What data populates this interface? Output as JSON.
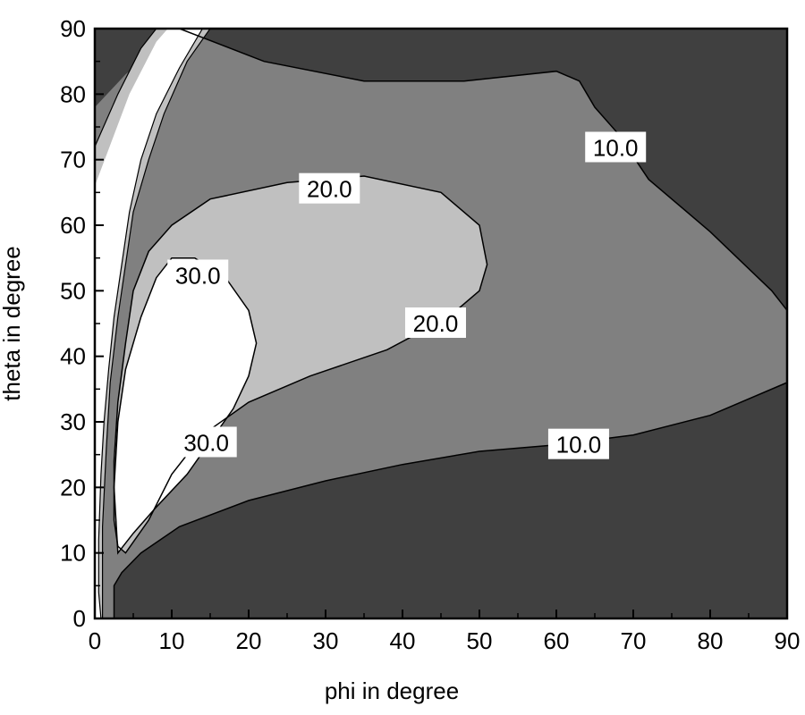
{
  "chart_data": {
    "type": "contour",
    "xlabel": "phi in degree",
    "ylabel": "theta in degree",
    "xlim": [
      0,
      90
    ],
    "ylim": [
      0,
      90
    ],
    "x_ticks": [
      0,
      10,
      20,
      30,
      40,
      50,
      60,
      70,
      80,
      90
    ],
    "y_ticks": [
      0,
      10,
      20,
      30,
      40,
      50,
      60,
      70,
      80,
      90
    ],
    "levels": [
      10.0,
      20.0,
      30.0
    ],
    "fills": {
      "below_10": "#404040",
      "10_to_20": "#808080",
      "20_to_30": "#c0c0c0",
      "above_30": "#ffffff"
    },
    "contour_labels": [
      {
        "text": "10.0",
        "phi": 67.7,
        "theta": 71.8
      },
      {
        "text": "10.0",
        "phi": 62.9,
        "theta": 26.5
      },
      {
        "text": "20.0",
        "phi": 30.5,
        "theta": 65.5
      },
      {
        "text": "20.0",
        "phi": 44.3,
        "theta": 45.0
      },
      {
        "text": "30.0",
        "phi": 13.4,
        "theta": 52.3
      },
      {
        "text": "30.0",
        "phi": 14.5,
        "theta": 26.8
      }
    ],
    "contours": {
      "outer_10": [
        [
          0,
          0
        ],
        [
          0,
          95
        ],
        [
          11,
          95
        ],
        [
          28,
          95
        ],
        [
          42,
          95
        ],
        [
          42,
          91
        ],
        [
          30,
          89
        ],
        [
          23,
          84
        ],
        [
          18,
          74
        ],
        [
          14,
          66
        ],
        [
          12,
          58
        ],
        [
          8,
          50
        ],
        [
          5,
          42
        ],
        [
          3,
          34
        ],
        [
          2,
          26
        ],
        [
          2,
          18
        ],
        [
          2,
          10
        ],
        [
          2,
          5
        ],
        [
          2.5,
          4
        ],
        [
          2.5,
          0
        ]
      ],
      "band_10_20": [
        [
          0,
          0
        ],
        [
          0,
          95
        ],
        [
          11,
          95
        ],
        [
          28,
          95
        ],
        [
          42,
          95
        ],
        [
          42,
          91
        ],
        [
          50,
          89
        ],
        [
          60,
          87
        ],
        [
          70,
          85
        ],
        [
          78,
          84
        ],
        [
          85,
          82
        ],
        [
          90,
          80
        ],
        [
          90,
          50
        ],
        [
          80,
          51
        ],
        [
          70,
          53
        ],
        [
          66,
          54
        ],
        [
          63,
          57
        ],
        [
          60,
          58
        ],
        [
          55,
          59
        ],
        [
          50,
          61
        ],
        [
          45,
          63
        ],
        [
          40,
          65
        ],
        [
          35,
          66
        ],
        [
          30,
          67
        ],
        [
          25,
          68
        ],
        [
          20,
          70
        ],
        [
          16,
          73
        ],
        [
          12,
          77
        ],
        [
          8,
          80
        ],
        [
          5,
          82
        ],
        [
          3,
          84
        ],
        [
          2,
          87
        ],
        [
          1,
          90
        ],
        [
          1,
          95
        ]
      ],
      "line_10_upper": [
        [
          11,
          90
        ],
        [
          22,
          85
        ],
        [
          35,
          82
        ],
        [
          48,
          82
        ],
        [
          60,
          83.5
        ],
        [
          63,
          82
        ],
        [
          65,
          78
        ],
        [
          68,
          74
        ],
        [
          72,
          67
        ],
        [
          80,
          59
        ],
        [
          88,
          50
        ],
        [
          90,
          47
        ]
      ],
      "line_10_lower": [
        [
          2.5,
          0
        ],
        [
          2.5,
          5
        ],
        [
          3.5,
          7
        ],
        [
          6,
          10
        ],
        [
          11,
          14
        ],
        [
          20,
          18
        ],
        [
          30,
          21
        ],
        [
          40,
          23.5
        ],
        [
          50,
          25.5
        ],
        [
          60,
          26.5
        ],
        [
          70,
          28
        ],
        [
          80,
          31
        ],
        [
          90,
          36
        ]
      ],
      "line_20_upper": [
        [
          4,
          10
        ],
        [
          7,
          15
        ],
        [
          10,
          22
        ],
        [
          14,
          28
        ],
        [
          20,
          33
        ],
        [
          28,
          37
        ],
        [
          38,
          41
        ],
        [
          46,
          46
        ],
        [
          50,
          50
        ],
        [
          51,
          54
        ],
        [
          50,
          60
        ],
        [
          45,
          65
        ],
        [
          35,
          67.5
        ],
        [
          25,
          66.5
        ],
        [
          15,
          64
        ],
        [
          10,
          60
        ],
        [
          7,
          56
        ],
        [
          5,
          50
        ],
        [
          4,
          42
        ],
        [
          3,
          33
        ],
        [
          2.5,
          24
        ],
        [
          2.5,
          15
        ],
        [
          3,
          11
        ],
        [
          4,
          10
        ]
      ],
      "line_30": [
        [
          3,
          10
        ],
        [
          5,
          13
        ],
        [
          8,
          17
        ],
        [
          12,
          22
        ],
        [
          15,
          27
        ],
        [
          18,
          32
        ],
        [
          20,
          37
        ],
        [
          21,
          42
        ],
        [
          20,
          47
        ],
        [
          17,
          52
        ],
        [
          13,
          55
        ],
        [
          10,
          55
        ],
        [
          8,
          52
        ],
        [
          6,
          46
        ],
        [
          4,
          38
        ],
        [
          3,
          30
        ],
        [
          2.5,
          20
        ],
        [
          3,
          10
        ]
      ],
      "wedge_white": [
        [
          0,
          66
        ],
        [
          4.5,
          80
        ],
        [
          8,
          88
        ],
        [
          9.5,
          90
        ],
        [
          14,
          90
        ],
        [
          11,
          84
        ],
        [
          8,
          77
        ],
        [
          6,
          70
        ],
        [
          4.5,
          62
        ],
        [
          3.5,
          54
        ],
        [
          2.5,
          46
        ],
        [
          1.8,
          38
        ],
        [
          1.2,
          30
        ],
        [
          0.8,
          22
        ],
        [
          0.5,
          12
        ],
        [
          0.5,
          4
        ],
        [
          0.8,
          0
        ],
        [
          0,
          0
        ]
      ]
    }
  }
}
